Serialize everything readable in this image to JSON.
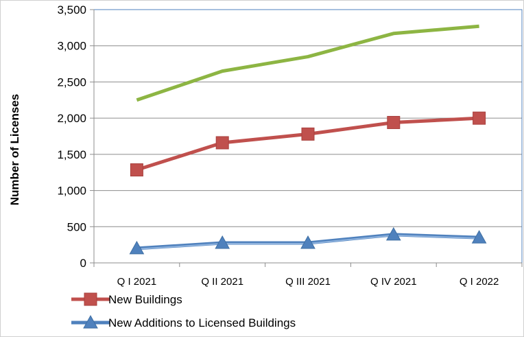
{
  "chart_data": {
    "type": "line",
    "title": "",
    "xlabel": "",
    "ylabel": "Number of Licenses",
    "ylim": [
      0,
      3500
    ],
    "y_ticks": [
      0,
      500,
      1000,
      1500,
      2000,
      2500,
      3000,
      3500
    ],
    "y_tick_labels": [
      "0",
      "500",
      "1,000",
      "1,500",
      "2,000",
      "2,500",
      "3,000",
      "3,500"
    ],
    "grid": true,
    "legend_position": "bottom-left",
    "categories": [
      "Q I 2021",
      "Q II 2021",
      "Q III 2021",
      "Q IV 2021",
      "Q I 2022"
    ],
    "series": [
      {
        "name": "",
        "values": [
          2250,
          2650,
          2850,
          3170,
          3270
        ],
        "color": "#8DB543",
        "marker": "none",
        "in_legend": false
      },
      {
        "name": "New Buildings",
        "values": [
          1285,
          1660,
          1780,
          1940,
          2000
        ],
        "color": "#C0504D",
        "marker": "square",
        "in_legend": true
      },
      {
        "name": "New Additions to Licensed Buildings",
        "values": [
          200,
          275,
          275,
          390,
          350
        ],
        "color": "#4F81BD",
        "marker": "triangle",
        "in_legend": true
      }
    ]
  }
}
